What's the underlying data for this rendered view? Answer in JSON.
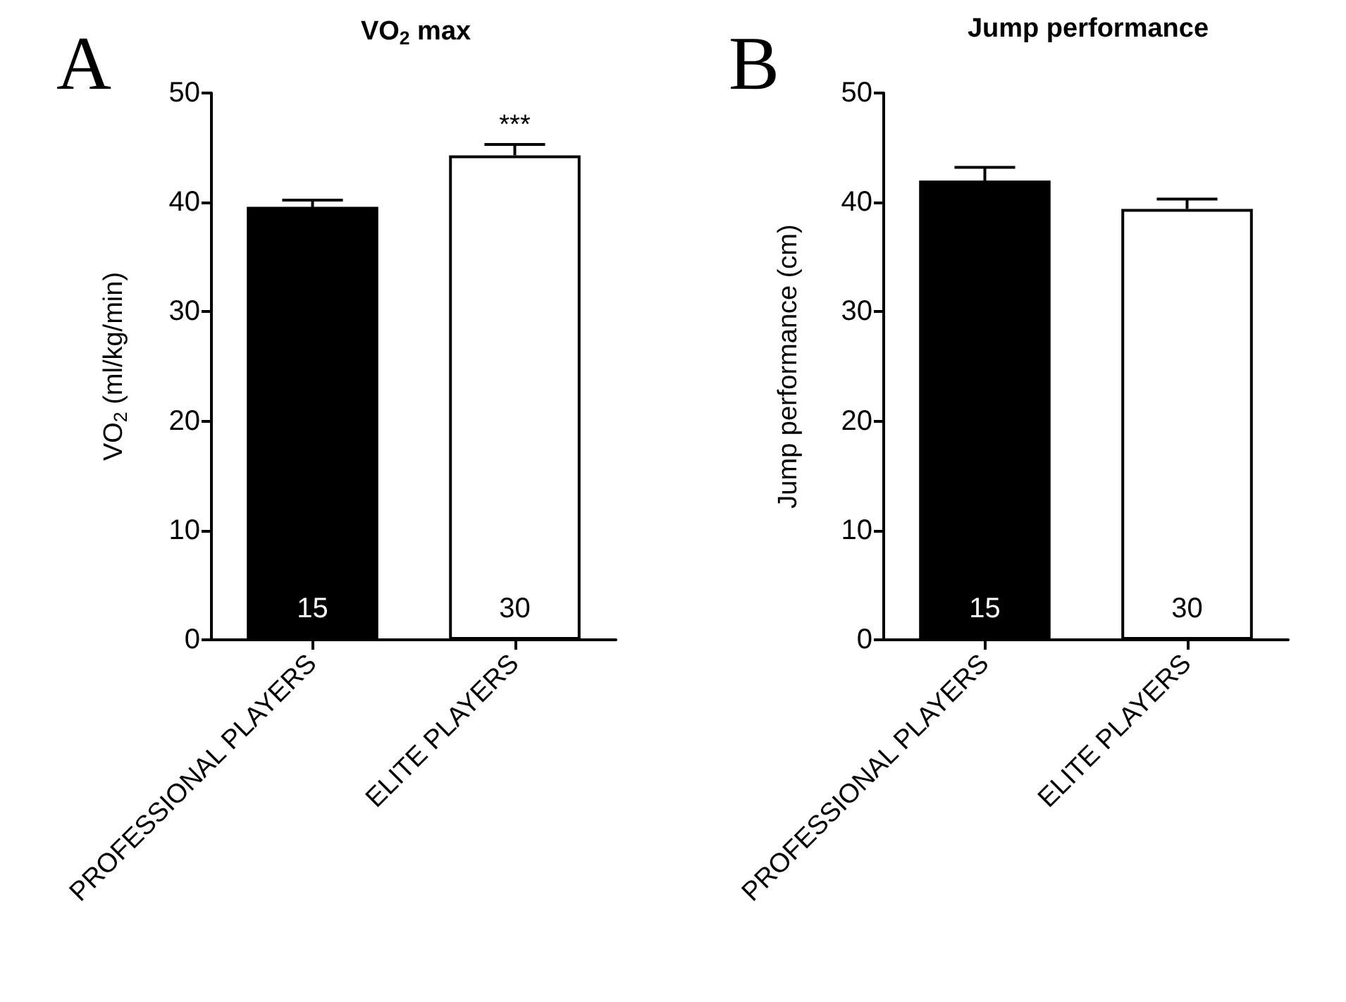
{
  "chart_data": [
    {
      "type": "bar",
      "title": "VO$_{2}$ max",
      "ylabel": "VO$_{2}$ (ml/kg/min)",
      "categories": [
        "PROFESSIONAL PLAYERS",
        "ELITE PLAYERS"
      ],
      "values": [
        39.6,
        44.3
      ],
      "colors": [
        "#000000",
        "#ffffff"
      ],
      "errors": [
        0.6,
        [
          44.3,
          45.3
        ]
      ],
      "ylim": [
        0,
        50
      ],
      "yticks": [
        0,
        10,
        20,
        30,
        40,
        50
      ],
      "grid": false,
      "annotations": [
        "A",
        "15",
        "30",
        {
          "text": "***",
          "x": "ELITE PLAYERS",
          "y": 45.3
        }
      ]
    },
    {
      "type": "bar",
      "title": "Jump performance",
      "ylabel": "Jump performance (cm)",
      "categories": [
        "PROFESSIONAL PLAYERS",
        "ELITE PLAYERS"
      ],
      "values": [
        42.0,
        39.4
      ],
      "colors": [
        "#000000",
        "#ffffff"
      ],
      "errors": [
        1.2,
        [
          39.4,
          40.3
        ]
      ],
      "ylim": [
        0,
        50
      ],
      "yticks": [
        0,
        10,
        20,
        30,
        40,
        50
      ],
      "grid": false,
      "annotations": [
        "B",
        "15",
        "30"
      ]
    }
  ]
}
